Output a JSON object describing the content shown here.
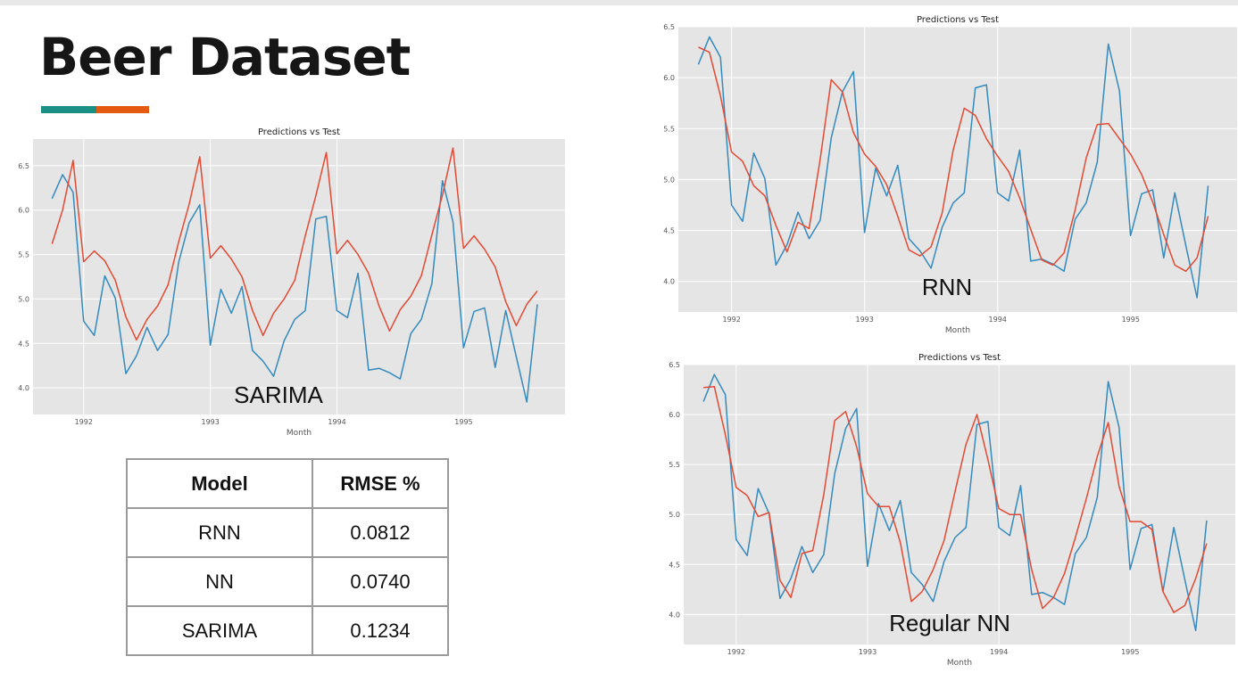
{
  "slide": {
    "title": "Beer Dataset",
    "accent_colors": [
      "#1a8f84",
      "#e35a10"
    ]
  },
  "table": {
    "headers": [
      "Model",
      "RMSE %"
    ],
    "rows": [
      {
        "model": "RNN",
        "rmse": "0.0812"
      },
      {
        "model": "NN",
        "rmse": "0.0740"
      },
      {
        "model": "SARIMA",
        "rmse": "0.1234"
      }
    ]
  },
  "chart_data": [
    {
      "id": "sarima",
      "type": "line",
      "title": "Predictions vs Test",
      "xlabel": "Month",
      "ylabel": "",
      "overlay_label": "SARIMA",
      "x_start": 1991.75,
      "x_step": 0.0833,
      "xlim": [
        1991.6,
        1995.8
      ],
      "ylim": [
        3.7,
        6.8
      ],
      "x_ticks": [
        1992,
        1993,
        1994,
        1995
      ],
      "x_tick_labels": [
        "1992",
        "1993",
        "1994",
        "1995"
      ],
      "y_ticks": [
        4.0,
        4.5,
        5.0,
        5.5,
        6.0,
        6.5
      ],
      "y_tick_labels": [
        "4.0",
        "4.5",
        "5.0",
        "5.5",
        "6.0",
        "6.5"
      ],
      "grid": true,
      "series": [
        {
          "color": "#348abd",
          "values": [
            6.13,
            6.4,
            6.2,
            4.75,
            4.59,
            5.26,
            5.01,
            4.16,
            4.36,
            4.68,
            4.42,
            4.6,
            5.41,
            5.86,
            6.06,
            4.48,
            5.11,
            4.84,
            5.14,
            4.42,
            4.3,
            4.13,
            4.53,
            4.77,
            4.87,
            5.9,
            5.93,
            4.87,
            4.79,
            5.29,
            4.2,
            4.22,
            4.17,
            4.1,
            4.61,
            4.77,
            5.17,
            6.33,
            5.87,
            4.45,
            4.86,
            4.9,
            4.23,
            4.87,
            4.35,
            3.84,
            4.94
          ]
        },
        {
          "color": "#e24a33",
          "values": [
            5.62,
            6.0,
            6.56,
            5.42,
            5.54,
            5.43,
            5.21,
            4.8,
            4.54,
            4.77,
            4.92,
            5.16,
            5.64,
            6.07,
            6.6,
            5.46,
            5.6,
            5.45,
            5.25,
            4.87,
            4.59,
            4.84,
            5.0,
            5.21,
            5.71,
            6.16,
            6.65,
            5.51,
            5.66,
            5.5,
            5.29,
            4.92,
            4.64,
            4.88,
            5.03,
            5.26,
            5.72,
            6.17,
            6.7,
            5.57,
            5.71,
            5.56,
            5.36,
            4.97,
            4.7,
            4.94,
            5.09
          ]
        }
      ]
    },
    {
      "id": "rnn",
      "type": "line",
      "title": "Predictions vs Test",
      "xlabel": "Month",
      "ylabel": "",
      "overlay_label": "RNN",
      "x_start": 1991.75,
      "x_step": 0.0833,
      "xlim": [
        1991.6,
        1995.8
      ],
      "ylim": [
        3.7,
        6.5
      ],
      "x_ticks": [
        1992,
        1993,
        1994,
        1995
      ],
      "x_tick_labels": [
        "1992",
        "1993",
        "1994",
        "1995"
      ],
      "y_ticks": [
        4.0,
        4.5,
        5.0,
        5.5,
        6.0,
        6.5
      ],
      "y_tick_labels": [
        "4.0",
        "4.5",
        "5.0",
        "5.5",
        "6.0",
        "6.5"
      ],
      "grid": true,
      "series": [
        {
          "color": "#348abd",
          "values": [
            6.13,
            6.4,
            6.2,
            4.75,
            4.59,
            5.26,
            5.01,
            4.16,
            4.36,
            4.68,
            4.42,
            4.6,
            5.41,
            5.86,
            6.06,
            4.48,
            5.11,
            4.84,
            5.14,
            4.42,
            4.3,
            4.13,
            4.53,
            4.77,
            4.87,
            5.9,
            5.93,
            4.87,
            4.79,
            5.29,
            4.2,
            4.22,
            4.17,
            4.1,
            4.61,
            4.77,
            5.17,
            6.33,
            5.87,
            4.45,
            4.86,
            4.9,
            4.23,
            4.87,
            4.35,
            3.84,
            4.94
          ]
        },
        {
          "color": "#e24a33",
          "values": [
            6.3,
            6.25,
            5.82,
            5.27,
            5.18,
            4.94,
            4.84,
            4.55,
            4.29,
            4.58,
            4.52,
            5.2,
            5.98,
            5.86,
            5.46,
            5.25,
            5.13,
            4.95,
            4.64,
            4.31,
            4.25,
            4.34,
            4.67,
            5.29,
            5.7,
            5.63,
            5.4,
            5.23,
            5.08,
            4.82,
            4.51,
            4.21,
            4.16,
            4.28,
            4.7,
            5.21,
            5.54,
            5.55,
            5.4,
            5.25,
            5.05,
            4.78,
            4.46,
            4.16,
            4.1,
            4.23,
            4.64
          ]
        }
      ]
    },
    {
      "id": "nn",
      "type": "line",
      "title": "Predictions vs Test",
      "xlabel": "Month",
      "ylabel": "",
      "overlay_label": "Regular NN",
      "x_start": 1991.75,
      "x_step": 0.0833,
      "xlim": [
        1991.6,
        1995.8
      ],
      "ylim": [
        3.7,
        6.5
      ],
      "x_ticks": [
        1992,
        1993,
        1994,
        1995
      ],
      "x_tick_labels": [
        "1992",
        "1993",
        "1994",
        "1995"
      ],
      "y_ticks": [
        4.0,
        4.5,
        5.0,
        5.5,
        6.0,
        6.5
      ],
      "y_tick_labels": [
        "4.0",
        "4.5",
        "5.0",
        "5.5",
        "6.0",
        "6.5"
      ],
      "grid": true,
      "series": [
        {
          "color": "#348abd",
          "values": [
            6.13,
            6.4,
            6.2,
            4.75,
            4.59,
            5.26,
            5.01,
            4.16,
            4.36,
            4.68,
            4.42,
            4.6,
            5.41,
            5.86,
            6.06,
            4.48,
            5.11,
            4.84,
            5.14,
            4.42,
            4.3,
            4.13,
            4.53,
            4.77,
            4.87,
            5.9,
            5.93,
            4.87,
            4.79,
            5.29,
            4.2,
            4.22,
            4.17,
            4.1,
            4.61,
            4.77,
            5.17,
            6.33,
            5.87,
            4.45,
            4.86,
            4.9,
            4.23,
            4.87,
            4.35,
            3.84,
            4.94
          ]
        },
        {
          "color": "#e24a33",
          "values": [
            6.27,
            6.28,
            5.8,
            5.27,
            5.19,
            4.98,
            5.02,
            4.34,
            4.17,
            4.61,
            4.64,
            5.2,
            5.94,
            6.03,
            5.68,
            5.21,
            5.08,
            5.08,
            4.72,
            4.13,
            4.23,
            4.45,
            4.74,
            5.23,
            5.7,
            6.0,
            5.55,
            5.06,
            5.0,
            5.0,
            4.45,
            4.06,
            4.17,
            4.41,
            4.77,
            5.16,
            5.58,
            5.92,
            5.28,
            4.93,
            4.93,
            4.85,
            4.23,
            4.02,
            4.09,
            4.36,
            4.71
          ]
        }
      ]
    }
  ]
}
